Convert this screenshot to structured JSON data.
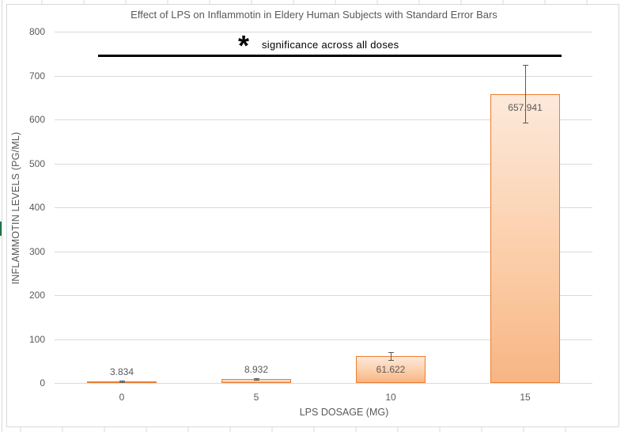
{
  "chart_data": {
    "type": "bar",
    "title": "Effect of LPS on Inflammotin in Eldery Human Subjects with Standard Error Bars",
    "xlabel": "LPS DOSAGE (MG)",
    "ylabel": "INFLAMMOTIN LEVELS (PG/ML)",
    "categories": [
      "0",
      "5",
      "10",
      "15"
    ],
    "values": [
      3.834,
      8.932,
      61.622,
      657.941
    ],
    "data_labels": [
      "3.834",
      "8.932",
      "61.622",
      "657.941"
    ],
    "error_bars": [
      1.5,
      1.5,
      9,
      66
    ],
    "ylim": [
      0,
      800
    ],
    "yticks": [
      "0",
      "100",
      "200",
      "300",
      "400",
      "500",
      "600",
      "700",
      "800"
    ],
    "grid": true,
    "legend": null,
    "bar_color": "#f8b583",
    "bar_border_color": "#ed7d31",
    "annotations": [
      {
        "type": "significance-bar",
        "symbol": "*",
        "text": "significance across all doses",
        "span": [
          "0",
          "15"
        ]
      }
    ]
  },
  "significance": {
    "symbol": "*",
    "text": "significance across all doses"
  }
}
